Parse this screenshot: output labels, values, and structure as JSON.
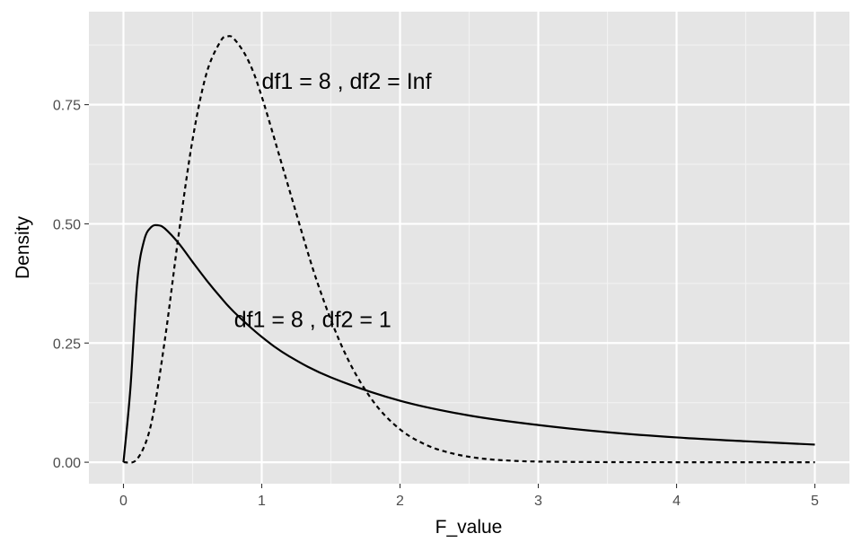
{
  "chart_data": {
    "type": "line",
    "title": "",
    "xlabel": "F_value",
    "ylabel": "Density",
    "xlim": [
      -0.25,
      5.25
    ],
    "ylim": [
      -0.045,
      0.945
    ],
    "x_ticks": [
      0,
      1,
      2,
      3,
      4,
      5
    ],
    "x_tick_labels": [
      "0",
      "1",
      "2",
      "3",
      "4",
      "5"
    ],
    "y_ticks": [
      0,
      0.25,
      0.5,
      0.75
    ],
    "y_tick_labels": [
      "0.00",
      "0.25",
      "0.50",
      "0.75"
    ],
    "grid": true,
    "legend": "none",
    "series": [
      {
        "linetype": "solid",
        "color": "#000000",
        "points": [
          [
            0,
            0
          ],
          [
            0.05,
            0.154
          ],
          [
            0.1,
            0.38
          ],
          [
            0.15,
            0.466
          ],
          [
            0.2,
            0.493
          ],
          [
            0.25,
            0.497
          ],
          [
            0.3,
            0.49
          ],
          [
            0.4,
            0.459
          ],
          [
            0.5,
            0.42
          ],
          [
            0.6,
            0.382
          ],
          [
            0.7,
            0.347
          ],
          [
            0.8,
            0.315
          ],
          [
            1.0,
            0.263
          ],
          [
            1.2,
            0.222
          ],
          [
            1.5,
            0.178
          ],
          [
            2.0,
            0.129
          ],
          [
            2.5,
            0.098
          ],
          [
            3.0,
            0.078
          ],
          [
            3.5,
            0.063
          ],
          [
            4.0,
            0.052
          ],
          [
            4.5,
            0.044
          ],
          [
            5.0,
            0.037
          ]
        ]
      },
      {
        "linetype": "dashed",
        "color": "#000000",
        "points": [
          [
            0,
            0
          ],
          [
            0.1,
            0.007
          ],
          [
            0.2,
            0.08
          ],
          [
            0.3,
            0.258
          ],
          [
            0.4,
            0.479
          ],
          [
            0.5,
            0.677
          ],
          [
            0.6,
            0.815
          ],
          [
            0.7,
            0.882
          ],
          [
            0.75,
            0.893
          ],
          [
            0.8,
            0.888
          ],
          [
            0.9,
            0.844
          ],
          [
            1.0,
            0.767
          ],
          [
            1.2,
            0.571
          ],
          [
            1.4,
            0.379
          ],
          [
            1.6,
            0.23
          ],
          [
            1.8,
            0.13
          ],
          [
            2.0,
            0.069
          ],
          [
            2.2,
            0.035
          ],
          [
            2.4,
            0.017
          ],
          [
            2.6,
            0.0075
          ],
          [
            2.8,
            0.0033
          ],
          [
            3.0,
            0.0014
          ],
          [
            3.5,
            0.0002
          ],
          [
            4.0,
            0.0
          ],
          [
            5.0,
            0.0
          ]
        ]
      }
    ],
    "annotations": [
      {
        "text": "df1 = 8 , df2 = Inf",
        "x": 1.0,
        "y": 0.8
      },
      {
        "text": "df1 = 8 , df2 = 1",
        "x": 0.8,
        "y": 0.3
      }
    ]
  }
}
